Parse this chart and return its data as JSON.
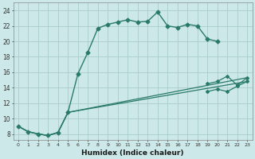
{
  "xlabel": "Humidex (Indice chaleur)",
  "bg_color": "#cce8e8",
  "grid_color": "#aacccc",
  "line_color": "#2a7a6a",
  "xlim": [
    -0.5,
    23.5
  ],
  "ylim": [
    7.2,
    25.0
  ],
  "yticks": [
    8,
    10,
    12,
    14,
    16,
    18,
    20,
    22,
    24
  ],
  "xtick_labels": [
    "0",
    "1",
    "2",
    "3",
    "4",
    "5",
    "6",
    "7",
    "8",
    "9",
    "10",
    "11",
    "12",
    "13",
    "14",
    "15",
    "16",
    "17",
    "18",
    "19",
    "20",
    "21",
    "22",
    "23"
  ],
  "curve1_x": [
    0,
    1,
    2,
    3,
    4,
    5,
    6,
    7,
    8,
    9,
    10,
    11,
    12,
    13,
    14,
    15,
    16,
    17,
    18,
    19,
    20
  ],
  "curve1_y": [
    9.0,
    8.3,
    8.0,
    7.8,
    8.2,
    10.8,
    15.8,
    18.6,
    21.7,
    22.2,
    22.5,
    22.8,
    22.5,
    22.6,
    23.8,
    22.0,
    21.8,
    22.2,
    22.0,
    20.3,
    20.0
  ],
  "curve2_x": [
    0,
    1,
    2,
    3,
    4,
    5,
    23
  ],
  "curve2_y": [
    9.0,
    8.3,
    8.0,
    7.8,
    8.2,
    10.8,
    15.3
  ],
  "curve2_tail_x": [
    19,
    20,
    21,
    22,
    23
  ],
  "curve2_tail_y": [
    14.5,
    14.8,
    15.5,
    14.3,
    15.3
  ],
  "curve3_x": [
    0,
    1,
    2,
    3,
    4,
    5,
    23
  ],
  "curve3_y": [
    9.0,
    8.3,
    8.0,
    7.8,
    8.2,
    10.8,
    14.8
  ],
  "curve3_tail_x": [
    19,
    20,
    21,
    22,
    23
  ],
  "curve3_tail_y": [
    13.5,
    13.8,
    13.5,
    14.2,
    14.8
  ]
}
